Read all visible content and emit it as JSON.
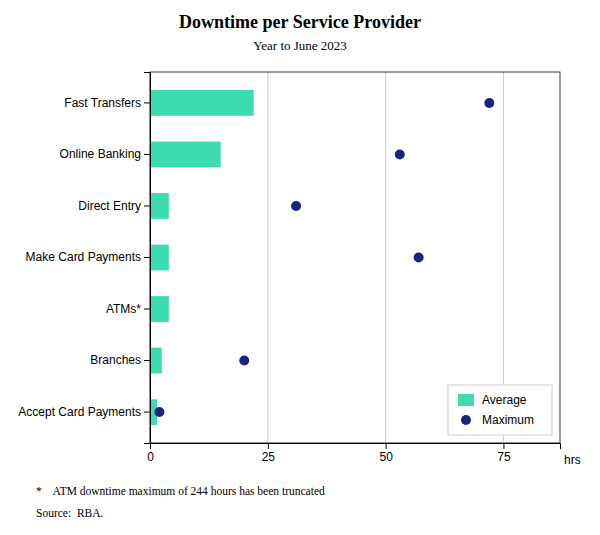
{
  "chart_data": {
    "type": "bar",
    "orientation": "horizontal",
    "title": "Downtime per Service Provider",
    "subtitle": "Year to June 2023",
    "categories": [
      "Fast Transfers",
      "Online Banking",
      "Direct Entry",
      "Make Card Payments",
      "ATMs*",
      "Branches",
      "Accept Card Payments"
    ],
    "series": [
      {
        "name": "Average",
        "color": "#3DDCB0",
        "values": [
          22,
          15,
          4,
          4,
          4,
          2.5,
          1.5
        ]
      },
      {
        "name": "Maximum",
        "color": "#1a237e",
        "type": "scatter",
        "marker": "circle",
        "values": [
          72,
          53,
          31,
          57,
          null,
          20,
          2
        ]
      }
    ],
    "xlabel": "hrs",
    "xlim": [
      0,
      87
    ],
    "xticks": [
      0,
      25,
      50,
      75
    ],
    "grid": true,
    "legend": "lower right",
    "annotations": [
      "*    ATM downtime maximum of 244 hours has been truncated",
      "Source:  RBA."
    ]
  }
}
